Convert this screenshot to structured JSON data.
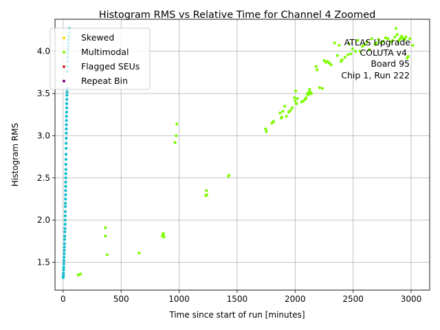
{
  "chart_data": {
    "type": "scatter",
    "title": "Histogram RMS vs Relative Time for Channel 4 Zoomed",
    "xlabel": "Time since start of run [minutes]",
    "ylabel": "Histogram RMS",
    "xlim": [
      -70,
      3160
    ],
    "ylim": [
      1.17,
      4.38
    ],
    "xticks": [
      0,
      500,
      1000,
      1500,
      2000,
      2500,
      3000
    ],
    "yticks": [
      1.5,
      2.0,
      2.5,
      3.0,
      3.5,
      4.0
    ],
    "xtick_labels": [
      "0",
      "500",
      "1000",
      "1500",
      "2000",
      "2500",
      "3000"
    ],
    "ytick_labels": [
      "1.5",
      "2.0",
      "2.5",
      "3.0",
      "3.5",
      "4.0"
    ],
    "grid": true,
    "legend_position": "top-left",
    "annotation": [
      "ATLAS Upgrade",
      "COLUTA v4",
      "Board 95",
      "Chip 1, Run 222"
    ],
    "series": [
      {
        "name": "Skewed",
        "color": "#ffd700",
        "points": []
      },
      {
        "name": "Multimodal",
        "color": "#7cfc00",
        "points": [
          [
            130,
            1.35
          ],
          [
            150,
            1.36
          ],
          [
            365,
            1.91
          ],
          [
            365,
            1.81
          ],
          [
            380,
            1.59
          ],
          [
            655,
            1.61
          ],
          [
            855,
            1.81
          ],
          [
            860,
            1.83
          ],
          [
            865,
            1.84
          ],
          [
            870,
            1.8
          ],
          [
            965,
            2.92
          ],
          [
            975,
            3.0
          ],
          [
            980,
            3.14
          ],
          [
            1230,
            2.29
          ],
          [
            1235,
            2.35
          ],
          [
            1240,
            2.3
          ],
          [
            1425,
            2.52
          ],
          [
            1430,
            2.53
          ],
          [
            1745,
            3.08
          ],
          [
            1752,
            3.05
          ],
          [
            1800,
            3.15
          ],
          [
            1815,
            3.17
          ],
          [
            1870,
            3.27
          ],
          [
            1880,
            3.21
          ],
          [
            1885,
            3.22
          ],
          [
            1895,
            3.29
          ],
          [
            1910,
            3.35
          ],
          [
            1925,
            3.23
          ],
          [
            1945,
            3.28
          ],
          [
            1960,
            3.3
          ],
          [
            1975,
            3.33
          ],
          [
            1995,
            3.45
          ],
          [
            2000,
            3.41
          ],
          [
            2005,
            3.53
          ],
          [
            2012,
            3.38
          ],
          [
            2020,
            3.44
          ],
          [
            2055,
            3.4
          ],
          [
            2070,
            3.41
          ],
          [
            2085,
            3.43
          ],
          [
            2095,
            3.45
          ],
          [
            2105,
            3.49
          ],
          [
            2112,
            3.51
          ],
          [
            2120,
            3.49
          ],
          [
            2125,
            3.55
          ],
          [
            2130,
            3.52
          ],
          [
            2140,
            3.5
          ],
          [
            2180,
            3.82
          ],
          [
            2190,
            3.78
          ],
          [
            2210,
            3.57
          ],
          [
            2235,
            3.56
          ],
          [
            2250,
            3.89
          ],
          [
            2265,
            3.87
          ],
          [
            2280,
            3.88
          ],
          [
            2295,
            3.86
          ],
          [
            2310,
            3.84
          ],
          [
            2340,
            4.1
          ],
          [
            2365,
            3.95
          ],
          [
            2380,
            4.07
          ],
          [
            2395,
            3.88
          ],
          [
            2405,
            3.9
          ],
          [
            2430,
            3.93
          ],
          [
            2455,
            3.96
          ],
          [
            2465,
            4.09
          ],
          [
            2480,
            3.97
          ],
          [
            2495,
            4.03
          ],
          [
            2520,
            4.0
          ],
          [
            2540,
            4.13
          ],
          [
            2560,
            4.0
          ],
          [
            2580,
            4.06
          ],
          [
            2600,
            4.08
          ],
          [
            2620,
            4.11
          ],
          [
            2640,
            4.02
          ],
          [
            2660,
            4.15
          ],
          [
            2690,
            4.08
          ],
          [
            2700,
            4.1
          ],
          [
            2720,
            4.14
          ],
          [
            2740,
            4.1
          ],
          [
            2760,
            4.12
          ],
          [
            2780,
            4.16
          ],
          [
            2800,
            4.15
          ],
          [
            2820,
            4.11
          ],
          [
            2840,
            4.13
          ],
          [
            2860,
            4.17
          ],
          [
            2870,
            4.27
          ],
          [
            2880,
            4.2
          ],
          [
            2890,
            4.12
          ],
          [
            2900,
            4.14
          ],
          [
            2910,
            4.16
          ],
          [
            2920,
            4.18
          ],
          [
            2930,
            4.15
          ],
          [
            2945,
            4.14
          ],
          [
            2955,
            4.17
          ],
          [
            2965,
            3.92
          ],
          [
            2975,
            3.94
          ],
          [
            2990,
            4.15
          ],
          [
            3015,
            4.07
          ]
        ]
      },
      {
        "name": "Flagged SEUs",
        "color": "#d62728",
        "points": []
      },
      {
        "name": "Repeat Bin",
        "color": "#800080",
        "points": []
      }
    ],
    "cluster": {
      "color": "#17becf",
      "range_note": "dense cluster of points near t = 0 to 60 minutes",
      "points": [
        [
          0,
          1.32
        ],
        [
          2,
          1.34
        ],
        [
          3,
          1.37
        ],
        [
          4,
          1.41
        ],
        [
          5,
          1.44
        ],
        [
          6,
          1.48
        ],
        [
          7,
          1.52
        ],
        [
          8,
          1.56
        ],
        [
          9,
          1.6
        ],
        [
          10,
          1.64
        ],
        [
          11,
          1.68
        ],
        [
          12,
          1.72
        ],
        [
          13,
          1.77
        ],
        [
          14,
          1.81
        ],
        [
          15,
          1.86
        ],
        [
          16,
          1.9
        ],
        [
          17,
          1.95
        ],
        [
          18,
          2.0
        ],
        [
          18,
          2.05
        ],
        [
          19,
          2.1
        ],
        [
          19,
          2.16
        ],
        [
          20,
          2.2
        ],
        [
          20,
          2.25
        ],
        [
          21,
          2.3
        ],
        [
          21,
          2.35
        ],
        [
          22,
          2.4
        ],
        [
          22,
          2.45
        ],
        [
          23,
          2.5
        ],
        [
          23,
          2.55
        ],
        [
          24,
          2.6
        ],
        [
          24,
          2.66
        ],
        [
          25,
          2.72
        ],
        [
          25,
          2.78
        ],
        [
          26,
          2.85
        ],
        [
          26,
          2.91
        ],
        [
          27,
          2.97
        ],
        [
          27,
          3.03
        ],
        [
          28,
          3.08
        ],
        [
          28,
          3.13
        ],
        [
          29,
          3.18
        ],
        [
          29,
          3.23
        ],
        [
          30,
          3.28
        ],
        [
          31,
          3.33
        ],
        [
          31,
          3.38
        ],
        [
          32,
          3.43
        ],
        [
          33,
          3.48
        ],
        [
          34,
          3.52
        ],
        [
          35,
          3.56
        ],
        [
          36,
          3.76
        ],
        [
          37,
          3.82
        ],
        [
          38,
          3.88
        ],
        [
          39,
          3.93
        ],
        [
          40,
          3.98
        ],
        [
          42,
          4.02
        ],
        [
          44,
          4.06
        ],
        [
          46,
          4.1
        ],
        [
          48,
          4.14
        ],
        [
          50,
          4.18
        ],
        [
          52,
          4.22
        ],
        [
          54,
          4.27
        ]
      ]
    }
  }
}
